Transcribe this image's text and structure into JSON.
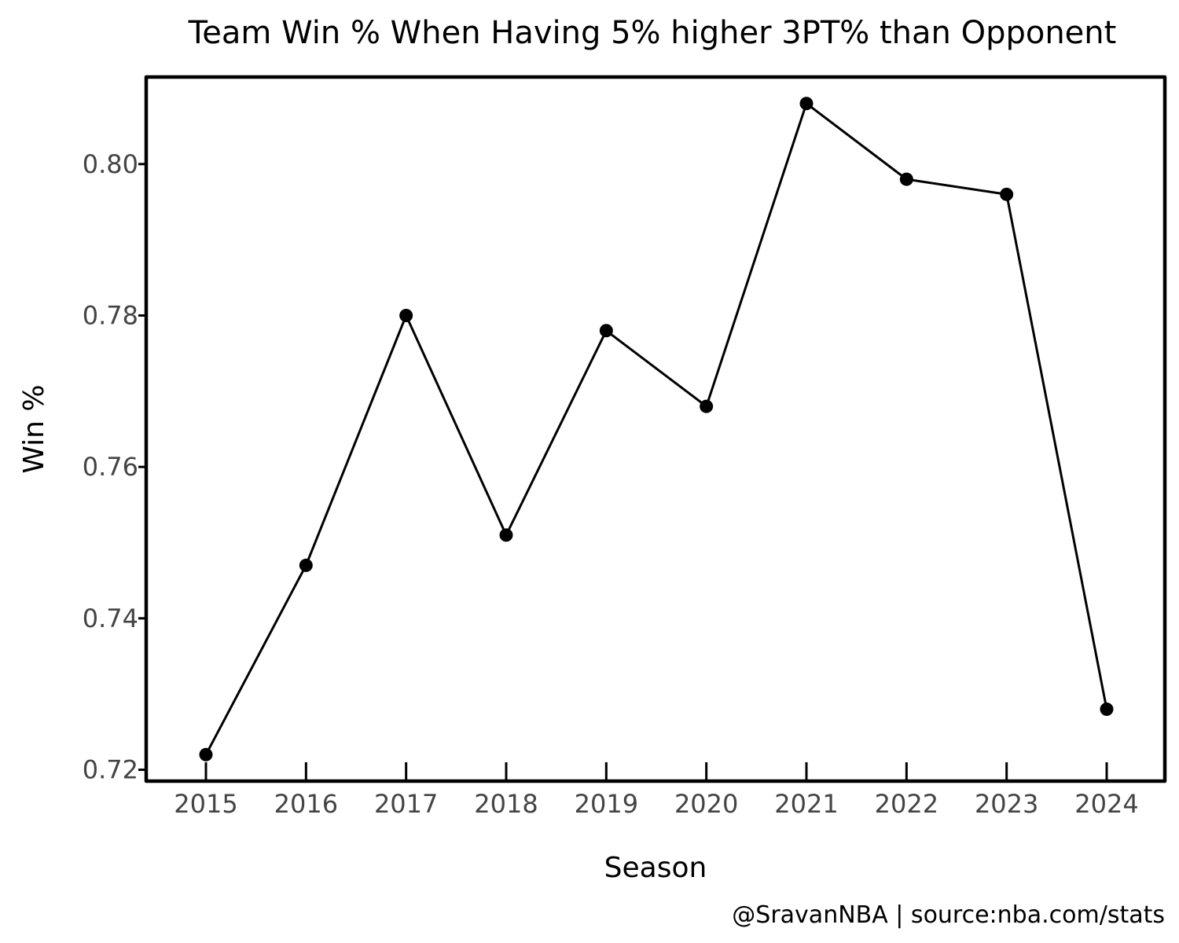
{
  "chart_data": {
    "type": "line",
    "title": "Team Win % When Having 5% higher 3PT% than Opponent",
    "xlabel": "Season",
    "ylabel": "Win %",
    "categories": [
      "2015",
      "2016",
      "2017",
      "2018",
      "2019",
      "2020",
      "2021",
      "2022",
      "2023",
      "2024"
    ],
    "series": [
      {
        "values": [
          0.722,
          0.747,
          0.78,
          0.751,
          0.778,
          0.768,
          0.808,
          0.798,
          0.796,
          0.728
        ]
      }
    ],
    "yticks": [
      "0.72",
      "0.74",
      "0.76",
      "0.78",
      "0.80"
    ],
    "ylim": [
      0.7185,
      0.8115
    ],
    "grid": false,
    "line_color": "#000000",
    "marker_color": "#000000"
  },
  "footer": {
    "credit": "@SravanNBA | source:nba.com/stats"
  }
}
